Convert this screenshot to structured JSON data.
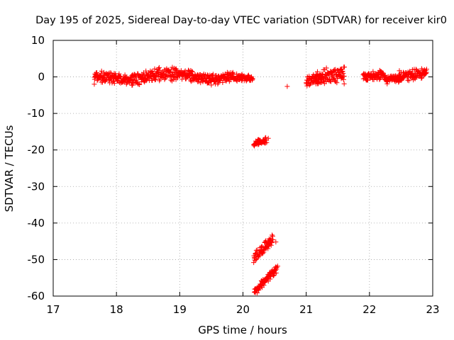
{
  "chart_data": {
    "type": "scatter",
    "title": "Day 195 of 2025, Sidereal Day-to-day VTEC variation (SDTVAR) for receiver kir0",
    "xlabel": "GPS time / hours",
    "ylabel": "SDTVAR / TECUs",
    "xlim": [
      17,
      23
    ],
    "ylim": [
      -60,
      10
    ],
    "xticks": [
      "17",
      "18",
      "19",
      "20",
      "21",
      "22",
      "23"
    ],
    "yticks": [
      "10",
      "0",
      "-10",
      "-20",
      "-30",
      "-40",
      "-50",
      "-60"
    ],
    "grid": true,
    "marker": "+",
    "series": [
      {
        "name": "SDTVAR",
        "color": "#ff0000",
        "bands": [
          {
            "x": [
              17.65,
              18.25
            ],
            "y_center": [
              0.3,
              -0.8
            ],
            "spread": 2.2
          },
          {
            "x": [
              18.25,
              18.6
            ],
            "y_center": [
              -0.8,
              0.6
            ],
            "spread": 2.4
          },
          {
            "x": [
              18.6,
              18.95
            ],
            "y_center": [
              0.6,
              0.9
            ],
            "spread": 2.6
          },
          {
            "x": [
              18.95,
              19.5
            ],
            "y_center": [
              0.9,
              -0.6
            ],
            "spread": 2.2
          },
          {
            "x": [
              19.5,
              19.85
            ],
            "y_center": [
              -0.6,
              0.2
            ],
            "spread": 2.2
          },
          {
            "x": [
              19.85,
              20.15
            ],
            "y_center": [
              -0.2,
              -0.4
            ],
            "spread": 1.4
          },
          {
            "x": [
              20.17,
              20.37
            ],
            "y_center": [
              -18.2,
              -17.3
            ],
            "spread": 1.0
          },
          {
            "x": [
              20.17,
              20.47
            ],
            "y_center": [
              -49.5,
              -44.5
            ],
            "spread": 2.2
          },
          {
            "x": [
              20.18,
              20.53
            ],
            "y_center": [
              -59.0,
              -52.5
            ],
            "spread": 1.6
          },
          {
            "x": [
              21.0,
              21.25
            ],
            "y_center": [
              -1.5,
              0.0
            ],
            "spread": 2.0
          },
          {
            "x": [
              21.15,
              21.6
            ],
            "y_center": [
              0.0,
              0.6
            ],
            "spread": 3.2
          },
          {
            "x": [
              21.9,
              22.25
            ],
            "y_center": [
              0.3,
              0.5
            ],
            "spread": 1.8
          },
          {
            "x": [
              22.25,
              22.5
            ],
            "y_center": [
              -0.6,
              -0.3
            ],
            "spread": 1.2
          },
          {
            "x": [
              22.45,
              22.9
            ],
            "y_center": [
              0.0,
              1.2
            ],
            "spread": 2.2
          }
        ],
        "outliers": [
          {
            "x": 17.65,
            "y": -2.0
          },
          {
            "x": 20.4,
            "y": -16.8
          },
          {
            "x": 20.52,
            "y": -45.2
          },
          {
            "x": 20.55,
            "y": -51.8
          },
          {
            "x": 20.7,
            "y": -2.6
          },
          {
            "x": 21.6,
            "y": -1.9
          },
          {
            "x": 22.28,
            "y": -1.9
          }
        ]
      }
    ]
  }
}
